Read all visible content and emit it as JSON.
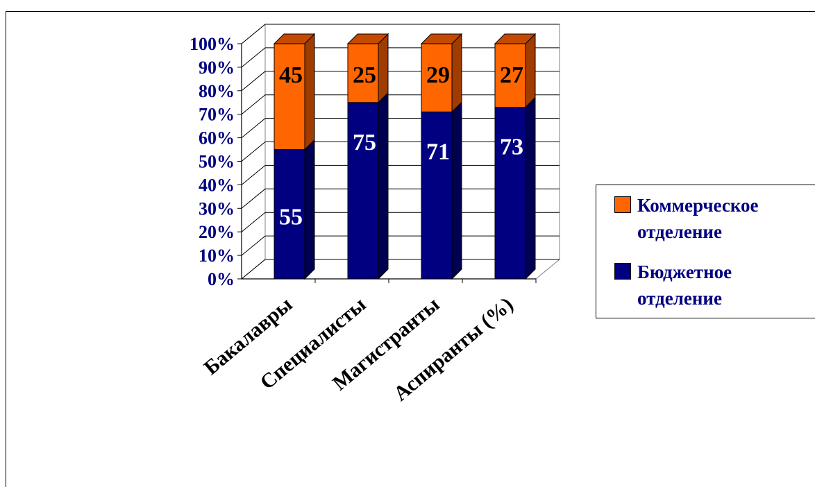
{
  "chart_data": {
    "type": "bar",
    "stacked": true,
    "percent_stacked": true,
    "three_d": true,
    "categories": [
      "Бакалавры",
      "Специалисты",
      "Магистранты",
      "Аспиранты (%)"
    ],
    "series": [
      {
        "name": "Бюджетное отделение",
        "values": [
          55,
          75,
          71,
          73
        ],
        "color": "#000080",
        "side_color": "#000050",
        "top_color": "#00006a"
      },
      {
        "name": "Коммерческое отделение",
        "values": [
          45,
          25,
          29,
          27
        ],
        "color": "#ff6600",
        "side_color": "#a03c00",
        "top_color": "#c44a00"
      }
    ],
    "y_ticks": [
      "0%",
      "10%",
      "20%",
      "30%",
      "40%",
      "50%",
      "60%",
      "70%",
      "80%",
      "90%",
      "100%"
    ],
    "ylim": [
      0,
      100
    ],
    "grid": true,
    "legend_position": "right",
    "axis_text_color": "#000080"
  },
  "legend": {
    "commercial": "Коммерческое\nотделение",
    "budget": "Бюджетное\nотделение"
  }
}
